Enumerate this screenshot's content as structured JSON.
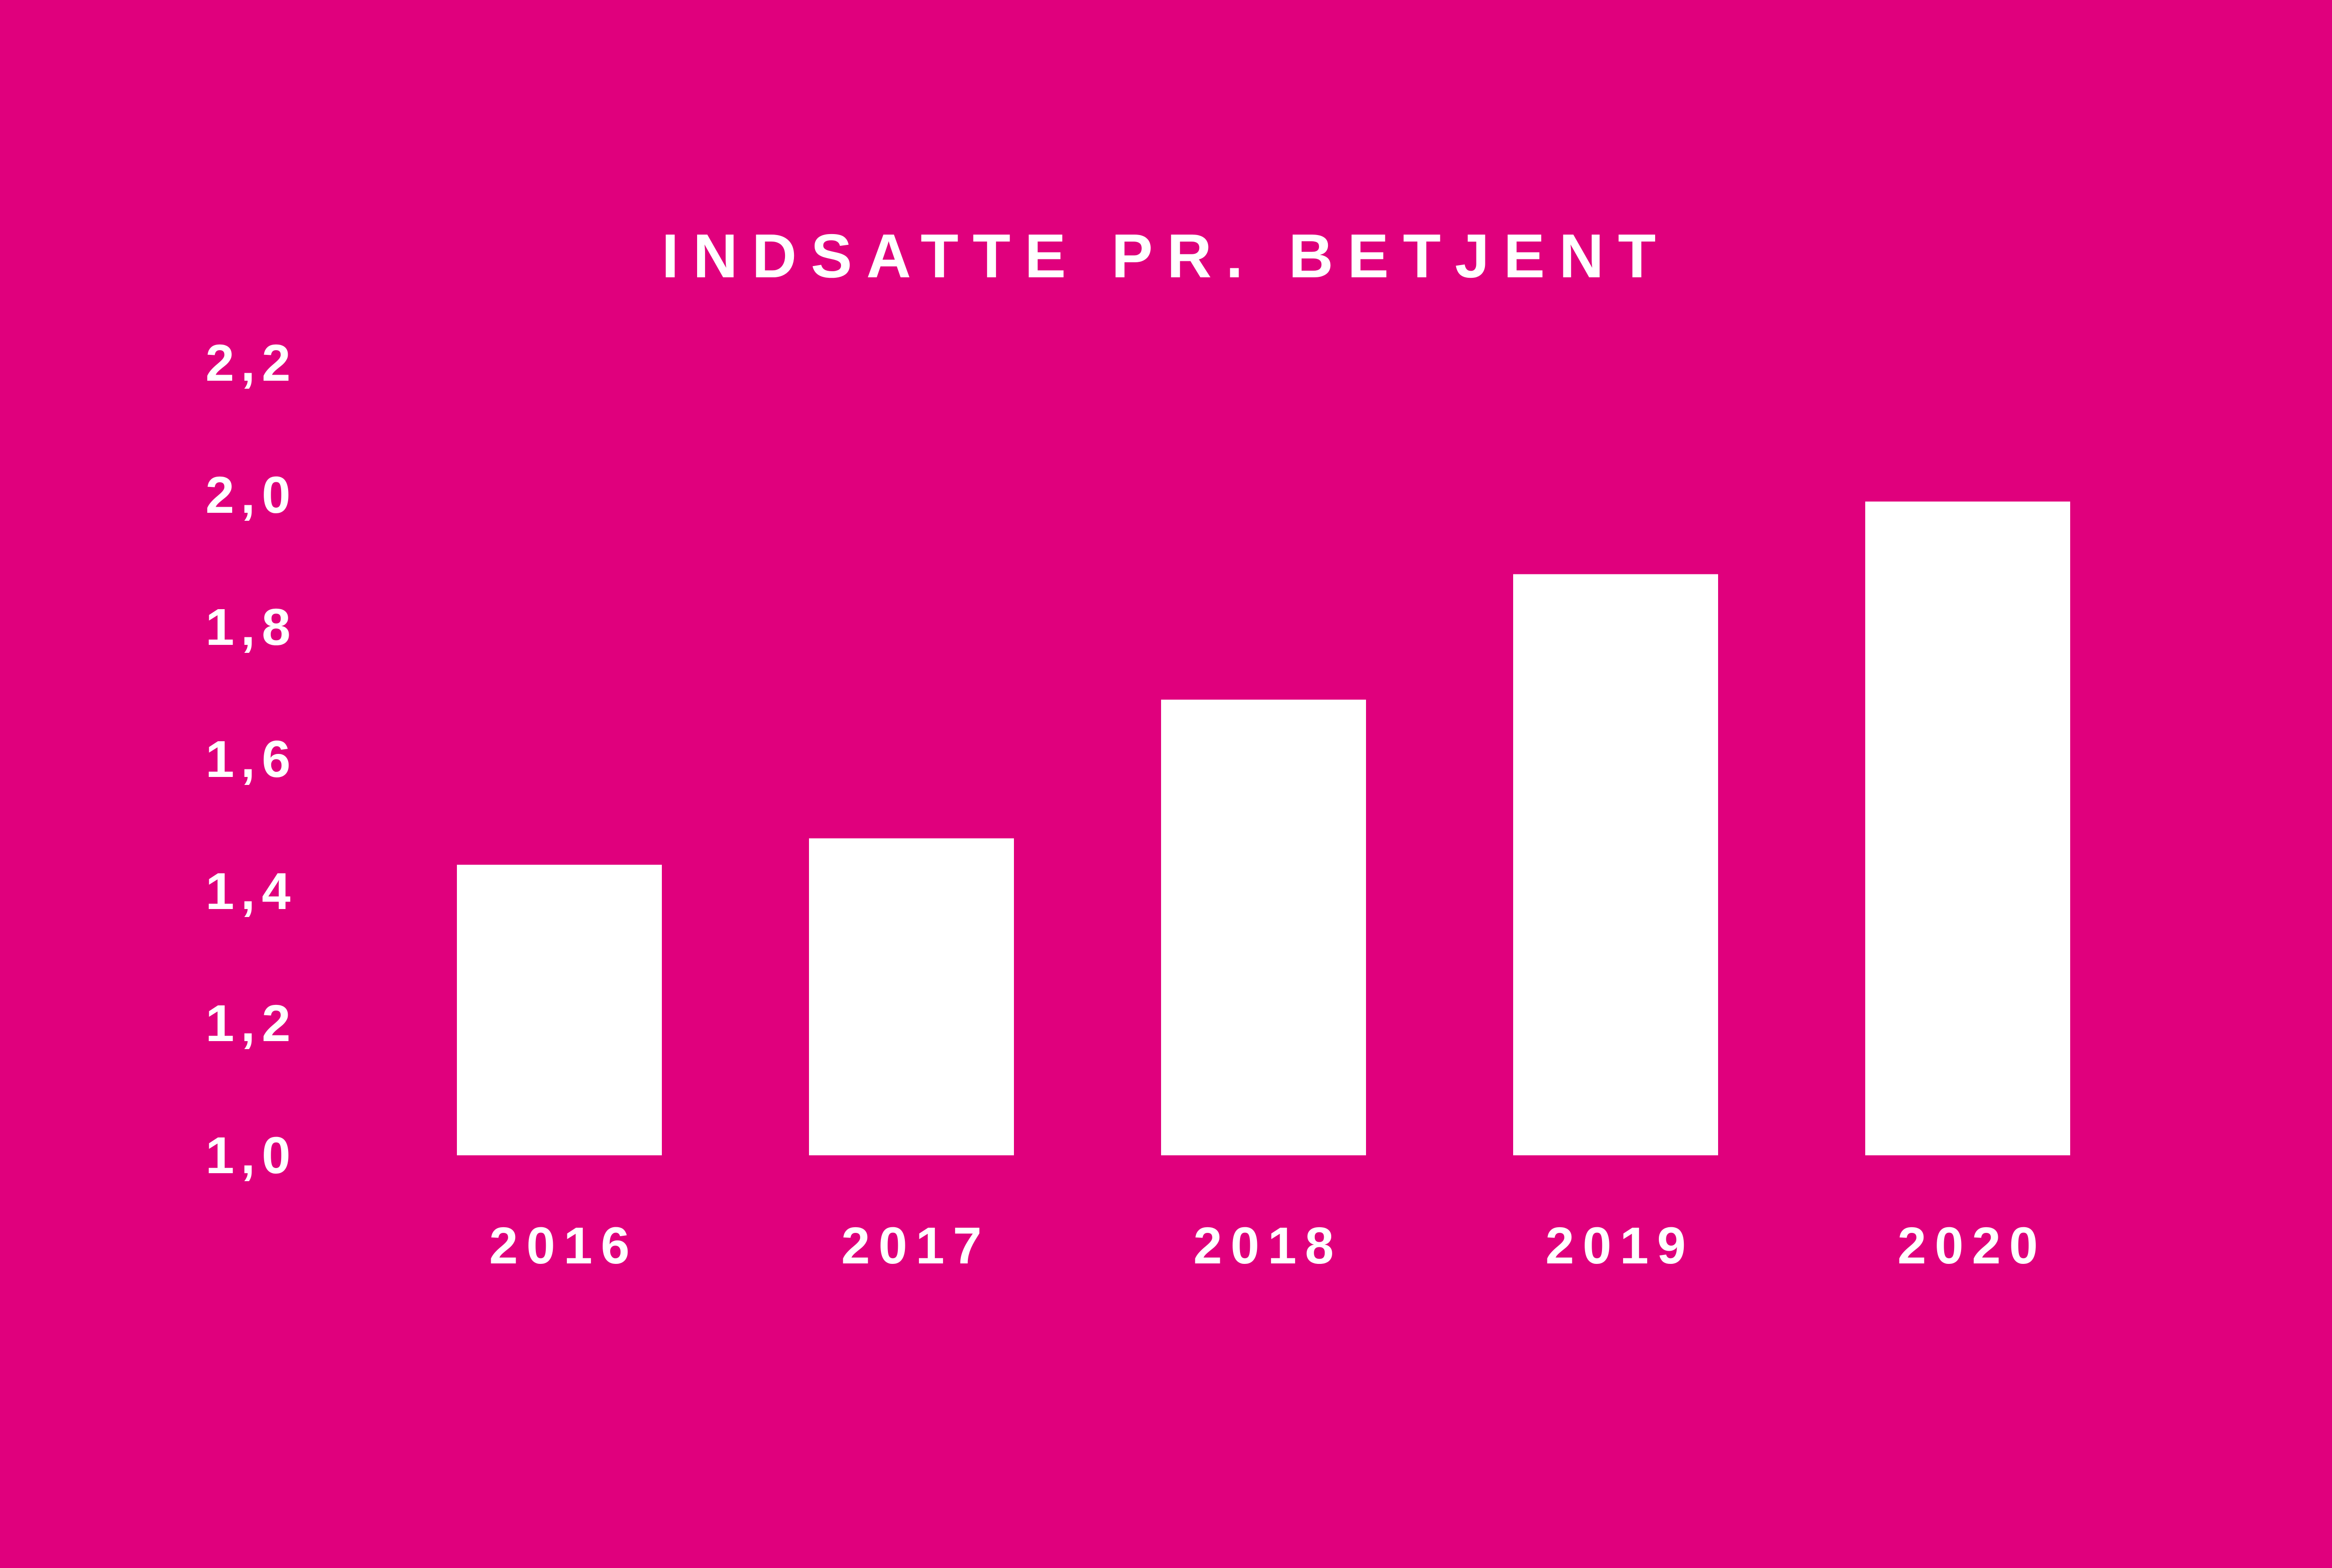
{
  "colors": {
    "background": "#e0007d",
    "bar": "#ffffff",
    "text": "#ffffff"
  },
  "chart_data": {
    "type": "bar",
    "title": "INDSATTE PR. BETJENT",
    "xlabel": "",
    "ylabel": "",
    "categories": [
      "2016",
      "2017",
      "2018",
      "2019",
      "2020"
    ],
    "values": [
      1.44,
      1.48,
      1.69,
      1.88,
      1.99
    ],
    "ylim": [
      1.0,
      2.2
    ],
    "yticks": [
      1.0,
      1.2,
      1.4,
      1.6,
      1.8,
      2.0,
      2.2
    ],
    "ytick_labels": [
      "1,0",
      "1,2",
      "1,4",
      "1,6",
      "1,8",
      "2,0",
      "2,2"
    ],
    "grid": false,
    "legend": "none"
  }
}
